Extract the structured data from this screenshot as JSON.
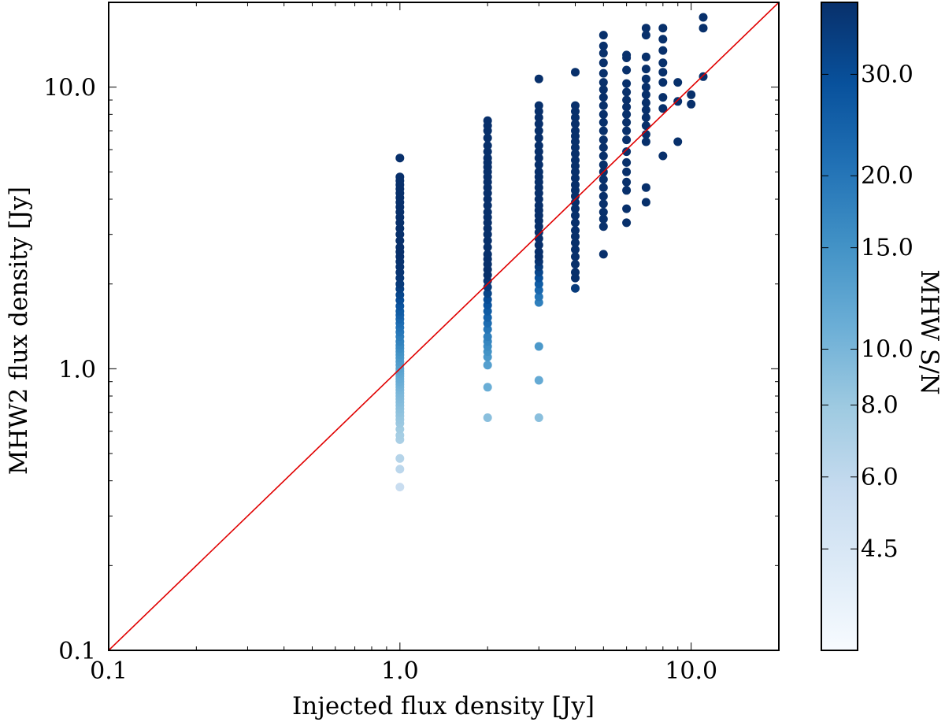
{
  "chart_data": {
    "type": "scatter",
    "title": "",
    "xlabel": "Injected flux density [Jy]",
    "ylabel": "MHW2 flux density [Jy]",
    "xscale": "log",
    "yscale": "log",
    "xlim": [
      0.1,
      20.0
    ],
    "ylim": [
      0.1,
      20.0
    ],
    "x_ticks": [
      0.1,
      1.0,
      10.0
    ],
    "x_tick_labels": [
      "0.1",
      "1.0",
      "10.0"
    ],
    "y_ticks": [
      0.1,
      1.0,
      10.0
    ],
    "y_tick_labels": [
      "0.1",
      "1.0",
      "10.0"
    ],
    "reference_line": {
      "label": "y = x",
      "color": "#e00000",
      "points": [
        [
          0.1,
          0.1
        ],
        [
          20.0,
          20.0
        ]
      ]
    },
    "colorbar": {
      "label": "MHW S/N",
      "range": [
        3.0,
        40.0
      ],
      "scale": "log",
      "ticks": [
        4.5,
        6.0,
        8.0,
        10.0,
        15.0,
        20.0,
        30.0
      ],
      "tick_labels": [
        "4.5",
        "6.0",
        "8.0",
        "10.0",
        "15.0",
        "20.0",
        "30.0"
      ],
      "cmap": [
        "#f7fbff",
        "#deebf7",
        "#c6dbef",
        "#9ecae1",
        "#6baed6",
        "#4292c6",
        "#2171b5",
        "#08519c",
        "#08306b"
      ]
    },
    "series": [
      {
        "name": "injected 1.0 Jy",
        "x": 1.0,
        "y": [
          0.38,
          0.44,
          0.48,
          0.56,
          0.58,
          0.61,
          0.64,
          0.66,
          0.68,
          0.7,
          0.72,
          0.74,
          0.76,
          0.78,
          0.8,
          0.82,
          0.84,
          0.86,
          0.88,
          0.9,
          0.92,
          0.94,
          0.96,
          0.98,
          1.0,
          1.03,
          1.06,
          1.09,
          1.12,
          1.15,
          1.18,
          1.21,
          1.25,
          1.3,
          1.35,
          1.4,
          1.45,
          1.5,
          1.55,
          1.6,
          1.67,
          1.75,
          1.83,
          1.92,
          2.0,
          2.1,
          2.2,
          2.3,
          2.4,
          2.5,
          2.6,
          2.7,
          2.85,
          3.0,
          3.15,
          3.3,
          3.45,
          3.6,
          3.75,
          3.9,
          4.05,
          4.2,
          4.35,
          4.5,
          4.65,
          4.8,
          5.6
        ],
        "snr": [
          5.5,
          6.2,
          6.6,
          7.2,
          7.4,
          7.7,
          8.0,
          8.2,
          8.4,
          8.6,
          8.8,
          9.0,
          9.2,
          9.4,
          9.6,
          9.8,
          10.0,
          10.3,
          10.6,
          10.9,
          11.2,
          11.5,
          11.8,
          12.1,
          12.5,
          13.0,
          13.5,
          14.0,
          14.5,
          15.0,
          15.8,
          16.5,
          17.5,
          18.5,
          19.5,
          20.5,
          21.5,
          23.0,
          24.5,
          26.0,
          28.0,
          30.0,
          32.0,
          34.0,
          36.0,
          37.0,
          38.0,
          38.5,
          39.0,
          39.5,
          40.0,
          40.0,
          40.0,
          40.0,
          40.0,
          40.0,
          40.0,
          40.0,
          40.0,
          40.0,
          40.0,
          40.0,
          40.0,
          40.0,
          40.0,
          40.0,
          40.0
        ]
      },
      {
        "name": "injected 2.0 Jy",
        "x": 2.0,
        "y": [
          0.67,
          0.86,
          1.03,
          1.1,
          1.15,
          1.2,
          1.25,
          1.3,
          1.38,
          1.45,
          1.52,
          1.6,
          1.68,
          1.76,
          1.85,
          1.95,
          2.05,
          2.15,
          2.25,
          2.35,
          2.45,
          2.55,
          2.7,
          2.85,
          3.0,
          3.15,
          3.3,
          3.45,
          3.6,
          3.8,
          4.0,
          4.2,
          4.4,
          4.6,
          4.8,
          5.0,
          5.2,
          5.4,
          5.6,
          5.9,
          6.2,
          6.6,
          7.0,
          7.3,
          7.6
        ],
        "snr": [
          9.0,
          11.0,
          13.0,
          14.0,
          15.0,
          16.0,
          17.0,
          18.5,
          20.0,
          22.0,
          24.0,
          26.0,
          28.0,
          30.0,
          33.0,
          36.0,
          38.0,
          40.0,
          40.0,
          40.0,
          40.0,
          40.0,
          40.0,
          40.0,
          40.0,
          40.0,
          40.0,
          40.0,
          40.0,
          40.0,
          40.0,
          40.0,
          40.0,
          40.0,
          40.0,
          40.0,
          40.0,
          40.0,
          40.0,
          40.0,
          40.0,
          40.0,
          40.0,
          40.0,
          40.0
        ]
      },
      {
        "name": "injected 3.0 Jy",
        "x": 3.0,
        "y": [
          0.67,
          0.91,
          1.2,
          1.72,
          1.8,
          1.9,
          2.0,
          2.1,
          2.2,
          2.3,
          2.4,
          2.5,
          2.6,
          2.75,
          2.9,
          3.05,
          3.2,
          3.35,
          3.5,
          3.65,
          3.8,
          4.0,
          4.2,
          4.4,
          4.6,
          4.8,
          5.0,
          5.3,
          5.6,
          5.9,
          6.2,
          6.6,
          7.0,
          7.4,
          7.8,
          8.2,
          8.6,
          10.7
        ],
        "snr": [
          9.0,
          11.5,
          14.0,
          18.0,
          20.0,
          23.0,
          26.0,
          29.0,
          32.0,
          35.0,
          38.0,
          40.0,
          40.0,
          40.0,
          40.0,
          40.0,
          40.0,
          40.0,
          40.0,
          40.0,
          40.0,
          40.0,
          40.0,
          40.0,
          40.0,
          40.0,
          40.0,
          40.0,
          40.0,
          40.0,
          40.0,
          40.0,
          40.0,
          40.0,
          40.0,
          40.0,
          40.0,
          40.0
        ]
      },
      {
        "name": "injected 4.0 Jy",
        "x": 4.0,
        "y": [
          1.93,
          2.1,
          2.2,
          2.35,
          2.5,
          2.65,
          2.8,
          2.95,
          3.1,
          3.3,
          3.5,
          3.7,
          3.9,
          4.1,
          4.3,
          4.5,
          4.75,
          5.0,
          5.25,
          5.5,
          5.8,
          6.1,
          6.4,
          6.7,
          7.0,
          7.4,
          7.8,
          8.2,
          8.6,
          11.3
        ],
        "snr": [
          36.0,
          40.0,
          40.0,
          40.0,
          40.0,
          40.0,
          40.0,
          40.0,
          40.0,
          40.0,
          40.0,
          40.0,
          40.0,
          40.0,
          40.0,
          40.0,
          40.0,
          40.0,
          40.0,
          40.0,
          40.0,
          40.0,
          40.0,
          40.0,
          40.0,
          40.0,
          40.0,
          40.0,
          40.0,
          40.0
        ]
      },
      {
        "name": "injected 5.0 Jy",
        "x": 5.0,
        "y": [
          2.55,
          3.2,
          3.4,
          3.6,
          3.85,
          4.1,
          4.4,
          4.7,
          5.0,
          5.3,
          5.7,
          6.1,
          6.5,
          7.0,
          7.5,
          8.0,
          8.6,
          9.2,
          9.8,
          10.4,
          11.2,
          12.2,
          13.2,
          14.0,
          15.3
        ],
        "snr": [
          40.0,
          40.0,
          40.0,
          40.0,
          40.0,
          40.0,
          40.0,
          40.0,
          40.0,
          40.0,
          40.0,
          40.0,
          40.0,
          40.0,
          40.0,
          40.0,
          40.0,
          40.0,
          40.0,
          40.0,
          40.0,
          40.0,
          40.0,
          40.0,
          40.0
        ]
      },
      {
        "name": "injected 6.0 Jy",
        "x": 6.0,
        "y": [
          3.3,
          3.7,
          4.3,
          4.6,
          5.0,
          5.4,
          5.9,
          6.5,
          7.0,
          7.5,
          8.0,
          8.5,
          9.0,
          9.6,
          10.3,
          11.5,
          12.7,
          13.0
        ],
        "snr": [
          40.0,
          40.0,
          40.0,
          40.0,
          40.0,
          40.0,
          40.0,
          40.0,
          40.0,
          40.0,
          40.0,
          40.0,
          40.0,
          40.0,
          40.0,
          40.0,
          40.0,
          40.0
        ]
      },
      {
        "name": "injected 7.0 Jy",
        "x": 7.0,
        "y": [
          3.9,
          4.4,
          6.4,
          6.8,
          7.3,
          7.8,
          8.3,
          8.8,
          9.4,
          10.0,
          10.7,
          11.6,
          12.8,
          15.3,
          16.2
        ],
        "snr": [
          40.0,
          40.0,
          40.0,
          40.0,
          40.0,
          40.0,
          40.0,
          40.0,
          40.0,
          40.0,
          40.0,
          40.0,
          40.0,
          40.0,
          40.0
        ]
      },
      {
        "name": "injected 8.0 Jy",
        "x": 8.0,
        "y": [
          5.7,
          8.4,
          9.2,
          10.4,
          11.3,
          12.2,
          13.5,
          14.8,
          16.2
        ],
        "snr": [
          40.0,
          40.0,
          40.0,
          40.0,
          40.0,
          40.0,
          40.0,
          40.0,
          40.0
        ]
      },
      {
        "name": "injected 9.0 Jy",
        "x": 9.0,
        "y": [
          6.4,
          8.9,
          10.4
        ],
        "snr": [
          40.0,
          40.0,
          40.0
        ]
      },
      {
        "name": "injected 10.0 Jy",
        "x": 10.0,
        "y": [
          8.7,
          9.4
        ],
        "snr": [
          40.0,
          40.0
        ]
      },
      {
        "name": "injected 11.0 Jy",
        "x": 11.0,
        "y": [
          10.9,
          16.2,
          17.7
        ],
        "snr": [
          40.0,
          40.0,
          40.0
        ]
      }
    ]
  }
}
